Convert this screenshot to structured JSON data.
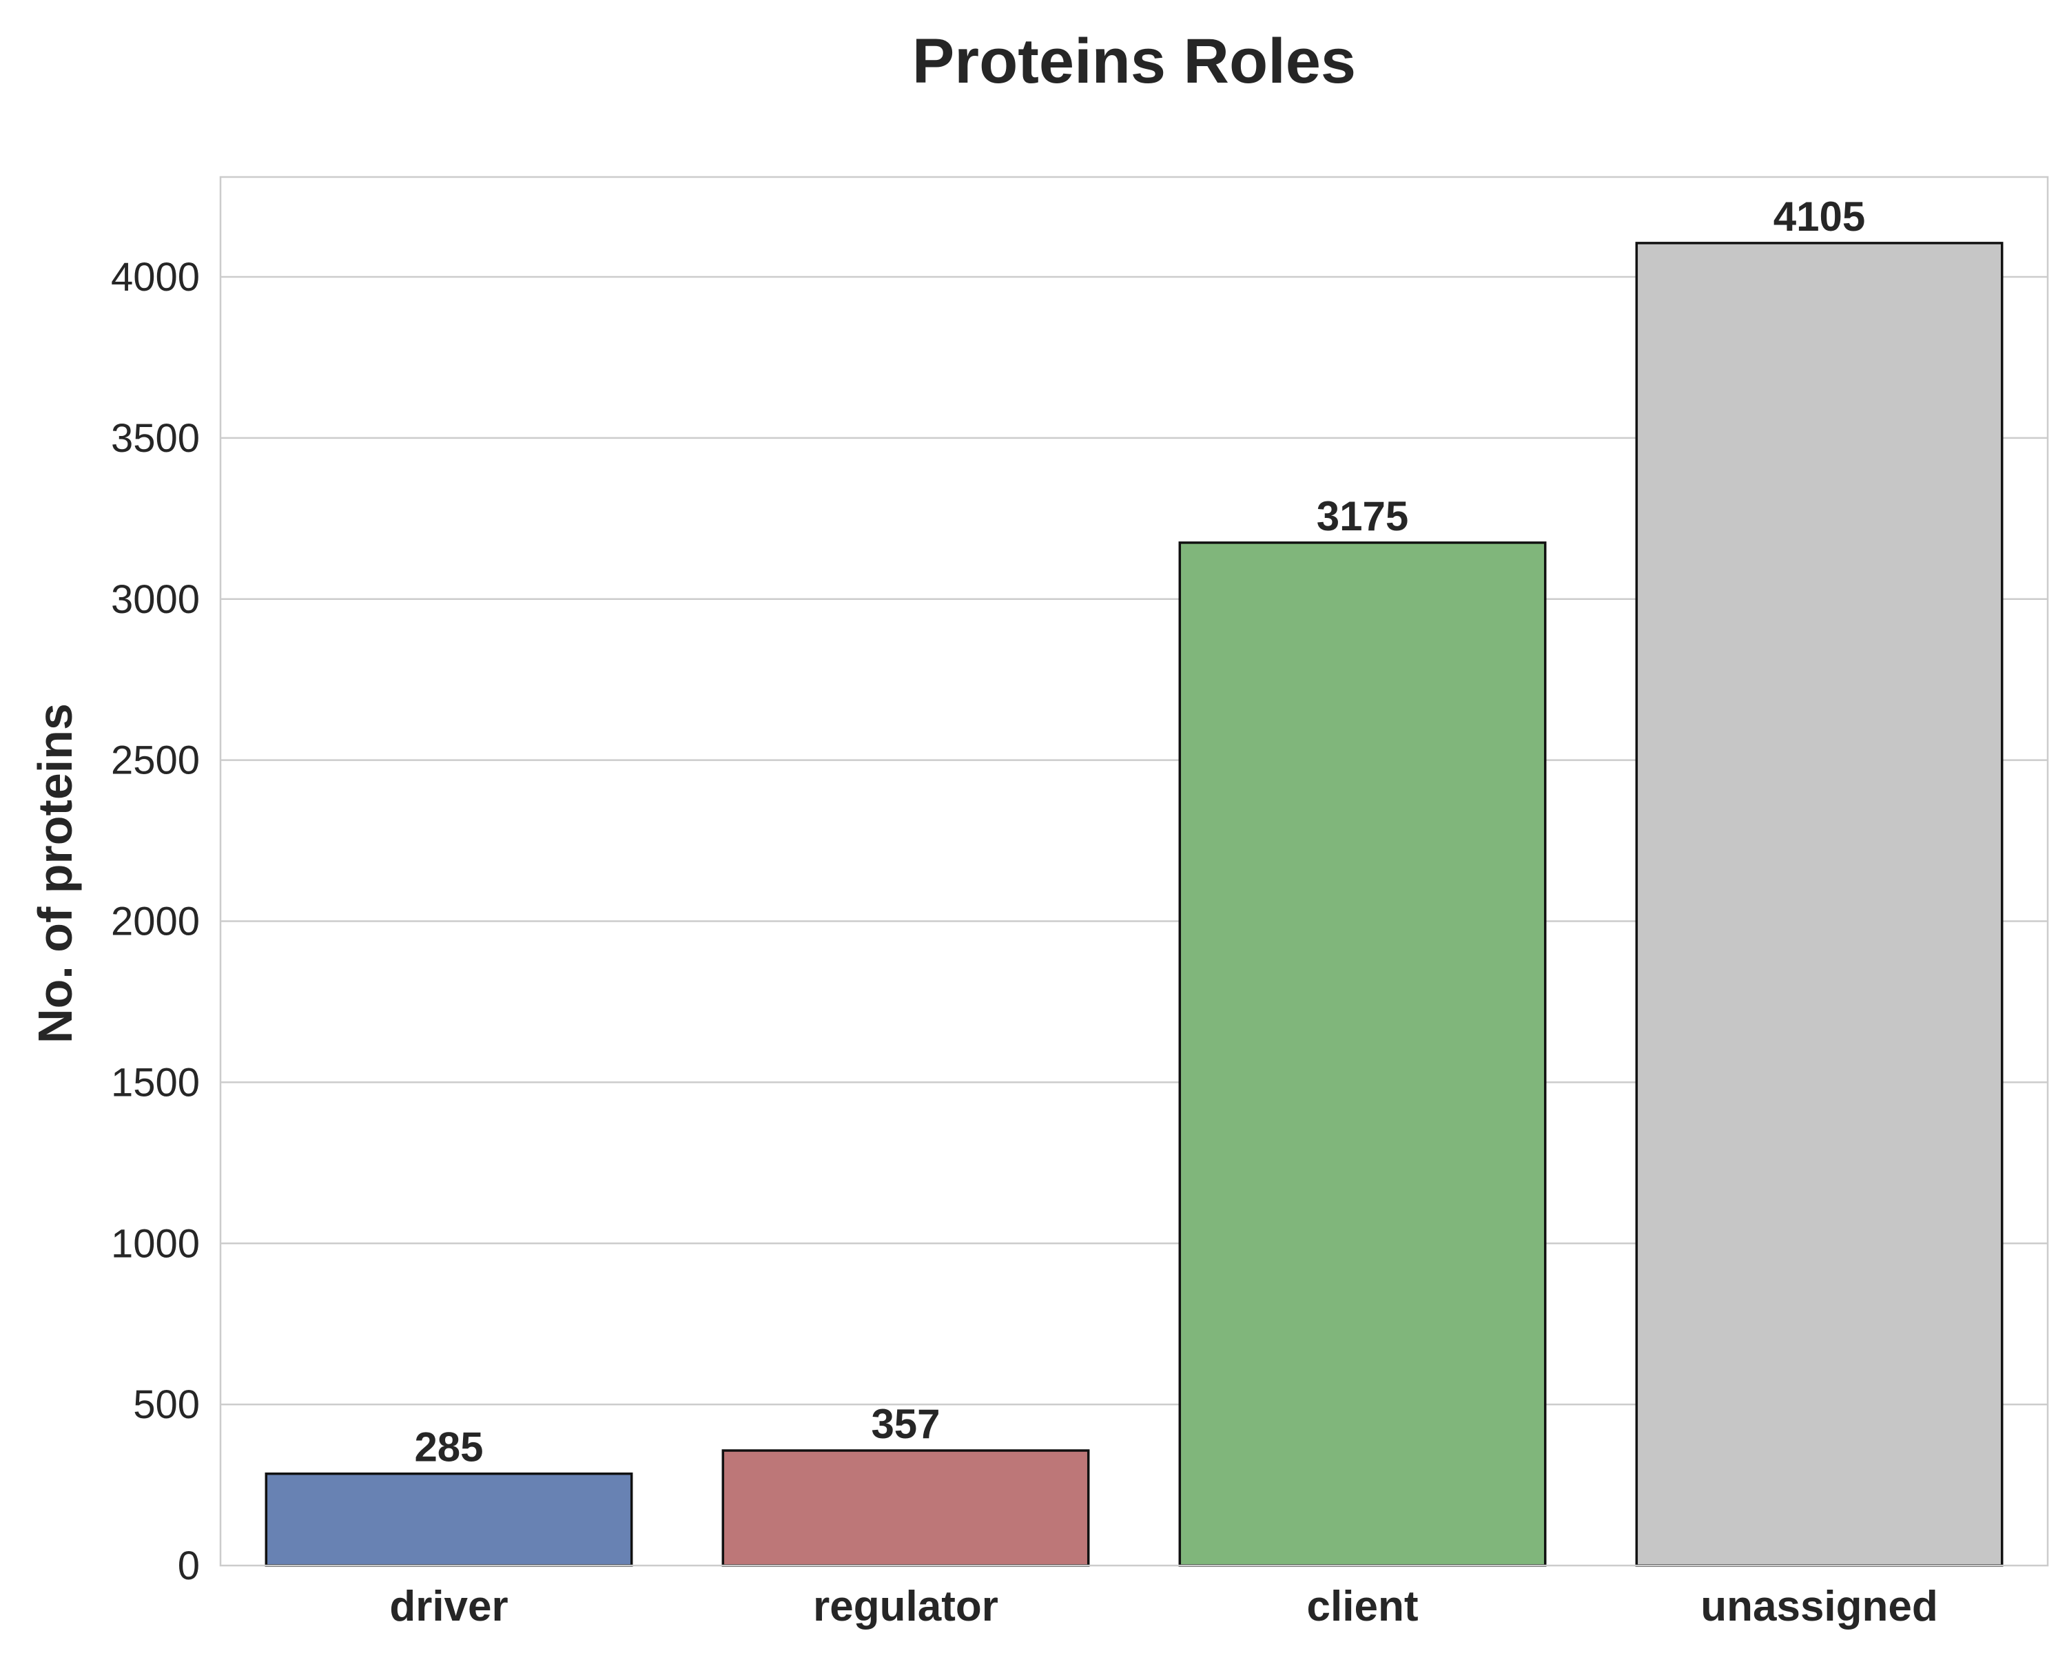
{
  "chart_data": {
    "type": "bar",
    "title": "Proteins Roles",
    "xlabel": "",
    "ylabel": "No. of proteins",
    "categories": [
      "driver",
      "regulator",
      "client",
      "unassigned"
    ],
    "values": [
      285,
      357,
      3175,
      4105
    ],
    "data_labels": [
      "285",
      "357",
      "3175",
      "4105"
    ],
    "colors": [
      "#6882b3",
      "#bd7778",
      "#80b67b",
      "#c6c6c6"
    ],
    "ylim": [
      0,
      4310
    ],
    "yticks": [
      0,
      500,
      1000,
      1500,
      2000,
      2500,
      3000,
      3500,
      4000
    ],
    "ytick_labels": [
      "0",
      "500",
      "1000",
      "1500",
      "2000",
      "2500",
      "3000",
      "3500",
      "4000"
    ],
    "grid": true,
    "grid_axis": "y",
    "legend": false
  }
}
